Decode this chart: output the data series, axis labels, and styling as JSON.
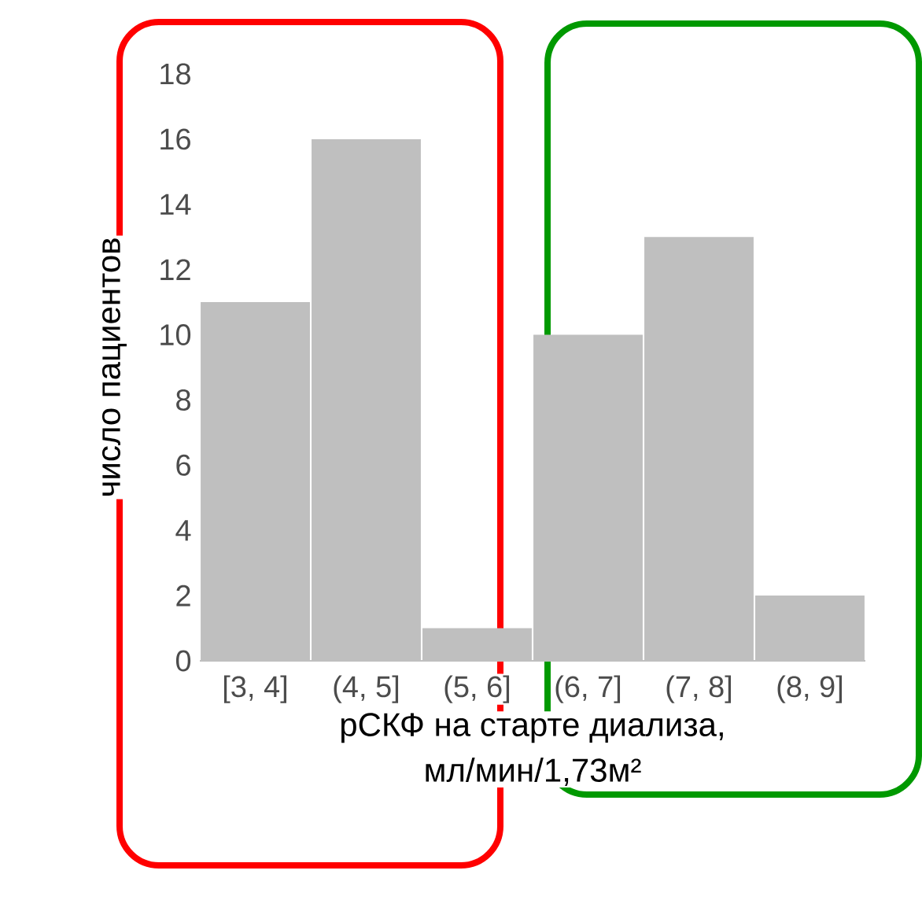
{
  "chart_data": {
    "type": "bar",
    "xlabel": "рСКФ на старте диализа, мл/мин/1,73м²",
    "ylabel": "число пациентов",
    "categories": [
      "[3, 4]",
      "(4, 5]",
      "(5, 6]",
      "(6, 7]",
      "(7, 8]",
      "(8, 9]"
    ],
    "values": [
      11,
      16,
      1,
      10,
      13,
      2
    ],
    "color": "#bfbfbf",
    "ylim": [
      0,
      18
    ],
    "yticks": [
      0,
      2,
      4,
      6,
      8,
      10,
      12,
      14,
      16,
      18
    ]
  }
}
